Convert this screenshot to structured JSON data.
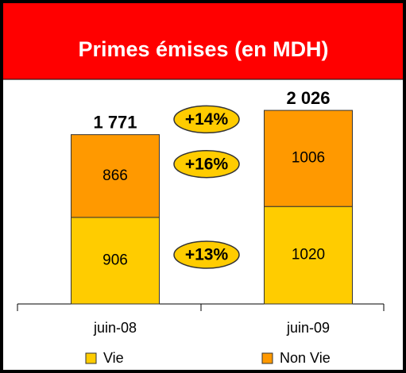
{
  "chart_data": {
    "type": "stacked_bar",
    "title": "Primes émises  (en MDH)",
    "categories": [
      "juin-08",
      "juin-09"
    ],
    "series": [
      {
        "name": "Vie",
        "color": "#ffcc00",
        "values": [
          906,
          1020
        ],
        "growth_label": "+13%"
      },
      {
        "name": "Non Vie",
        "color": "#ff9900",
        "values": [
          866,
          1006
        ],
        "growth_label": "+16%"
      }
    ],
    "totals": [
      1771,
      2026
    ],
    "total_labels": [
      "1 771",
      "2 026"
    ],
    "total_growth_label": "+14%",
    "ylim": [
      0,
      2500
    ]
  }
}
